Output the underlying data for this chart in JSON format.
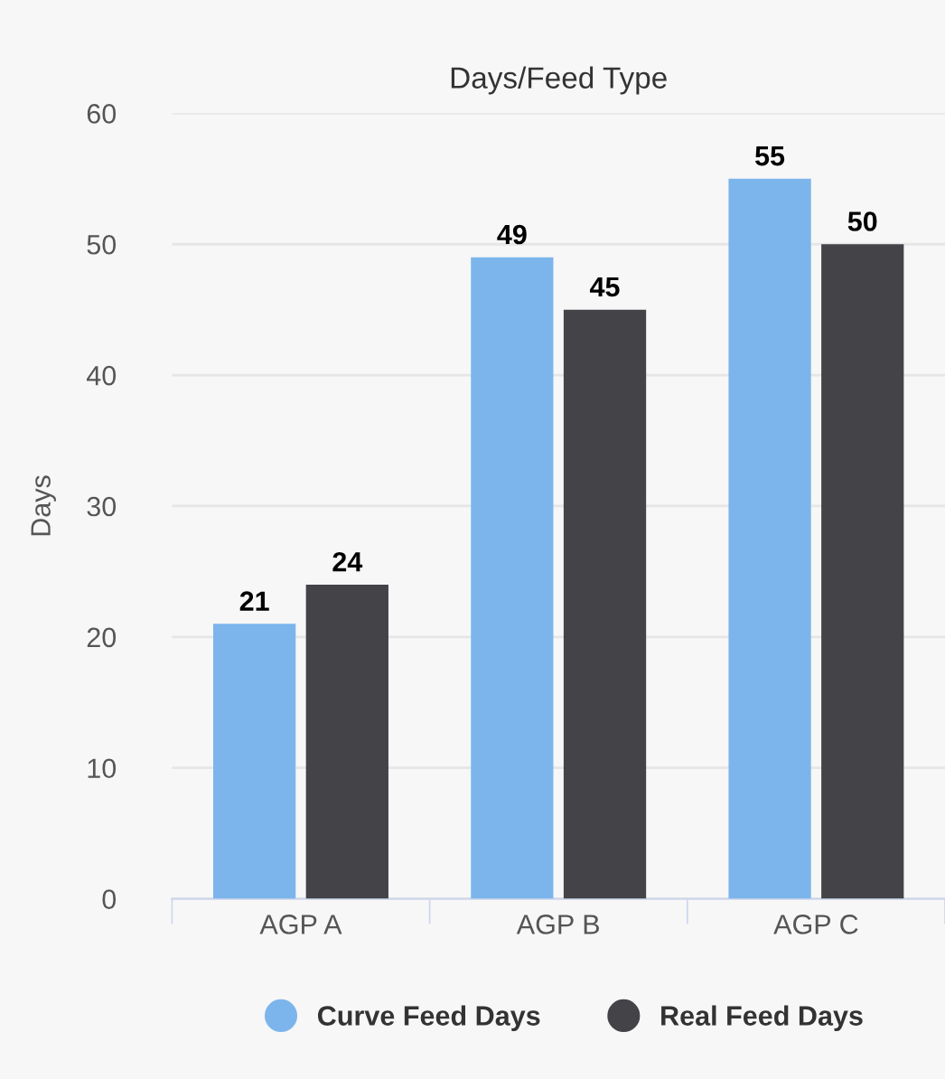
{
  "chart_data": {
    "type": "bar",
    "title": "Days/Feed Type",
    "ylabel": "Days",
    "categories": [
      "AGP A",
      "AGP B",
      "AGP C"
    ],
    "series": [
      {
        "name": "Curve Feed Days",
        "color": "#7cb5ec",
        "values": [
          21,
          49,
          55
        ]
      },
      {
        "name": "Real Feed Days",
        "color": "#434348",
        "values": [
          24,
          45,
          50
        ]
      }
    ],
    "ylim": [
      0,
      60
    ],
    "yticks": [
      0,
      10,
      20,
      30,
      40,
      50,
      60
    ],
    "grid": "y",
    "legend": "bottom",
    "data_labels": true
  }
}
